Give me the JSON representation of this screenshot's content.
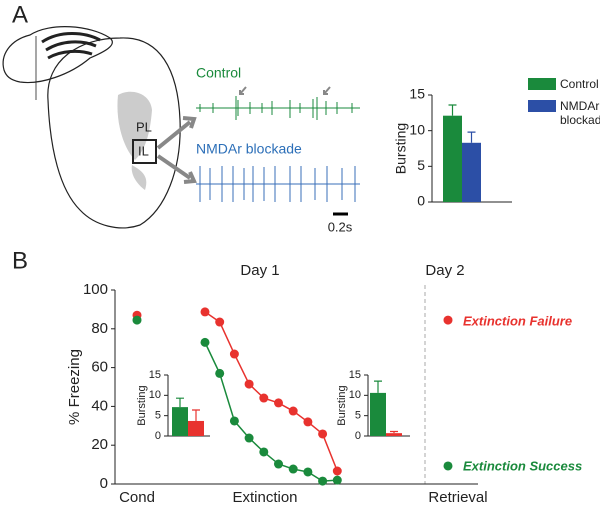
{
  "figure": {
    "panels": [
      "A",
      "B"
    ],
    "brain_labels": [
      "PL",
      "IL"
    ],
    "traces": [
      "Control",
      "NMDAr blockade"
    ],
    "scale_bar": "0.2s"
  },
  "chart_data": [
    {
      "type": "bar",
      "ylabel": "Bursting",
      "ylim": [
        0,
        15
      ],
      "yticks": [
        0,
        5,
        10,
        15
      ],
      "series": [
        {
          "name": "Control",
          "color": "#1a8a3c",
          "values": [
            12.1
          ],
          "errors": [
            1.5
          ]
        },
        {
          "name": "NMDAr blockade",
          "color": "#2c4fa6",
          "values": [
            8.3
          ],
          "errors": [
            1.5
          ]
        }
      ]
    },
    {
      "type": "line",
      "ylabel": "% Freezing",
      "ylim": [
        0,
        100
      ],
      "yticks": [
        0,
        20,
        40,
        60,
        80,
        100
      ],
      "x_labels": [
        "Cond",
        "Extinction",
        "Retrieval"
      ],
      "annotations": [
        {
          "text": "Day 1"
        },
        {
          "text": "Day 2"
        }
      ],
      "series": [
        {
          "name": "Extinction Failure",
          "color": "#e8322e",
          "values": [
            87,
            88.7,
            83.5,
            67,
            51.5,
            44.3,
            41.8,
            37.6,
            32,
            25.8,
            6.7,
            84.5
          ]
        },
        {
          "name": "Extinction Success",
          "color": "#1a8a3c",
          "values": [
            84.5,
            73,
            57,
            32.5,
            23.7,
            16.5,
            10.3,
            7.7,
            6.2,
            1.5,
            2,
            9.3
          ]
        }
      ]
    },
    {
      "type": "bar",
      "ylabel": "Bursting",
      "ylim": [
        0,
        15
      ],
      "yticks": [
        0,
        5,
        10,
        15
      ],
      "values": [
        7.1,
        3.7
      ],
      "errors": [
        2.2,
        2.7
      ],
      "colors": [
        "#1a8a3c",
        "#e8322e"
      ]
    },
    {
      "type": "bar",
      "ylabel": "Bursting",
      "ylim": [
        0,
        15
      ],
      "yticks": [
        0,
        5,
        10,
        15
      ],
      "values": [
        10.6,
        0.7
      ],
      "errors": [
        2.9,
        0.4
      ],
      "colors": [
        "#1a8a3c",
        "#e8322e"
      ]
    }
  ]
}
